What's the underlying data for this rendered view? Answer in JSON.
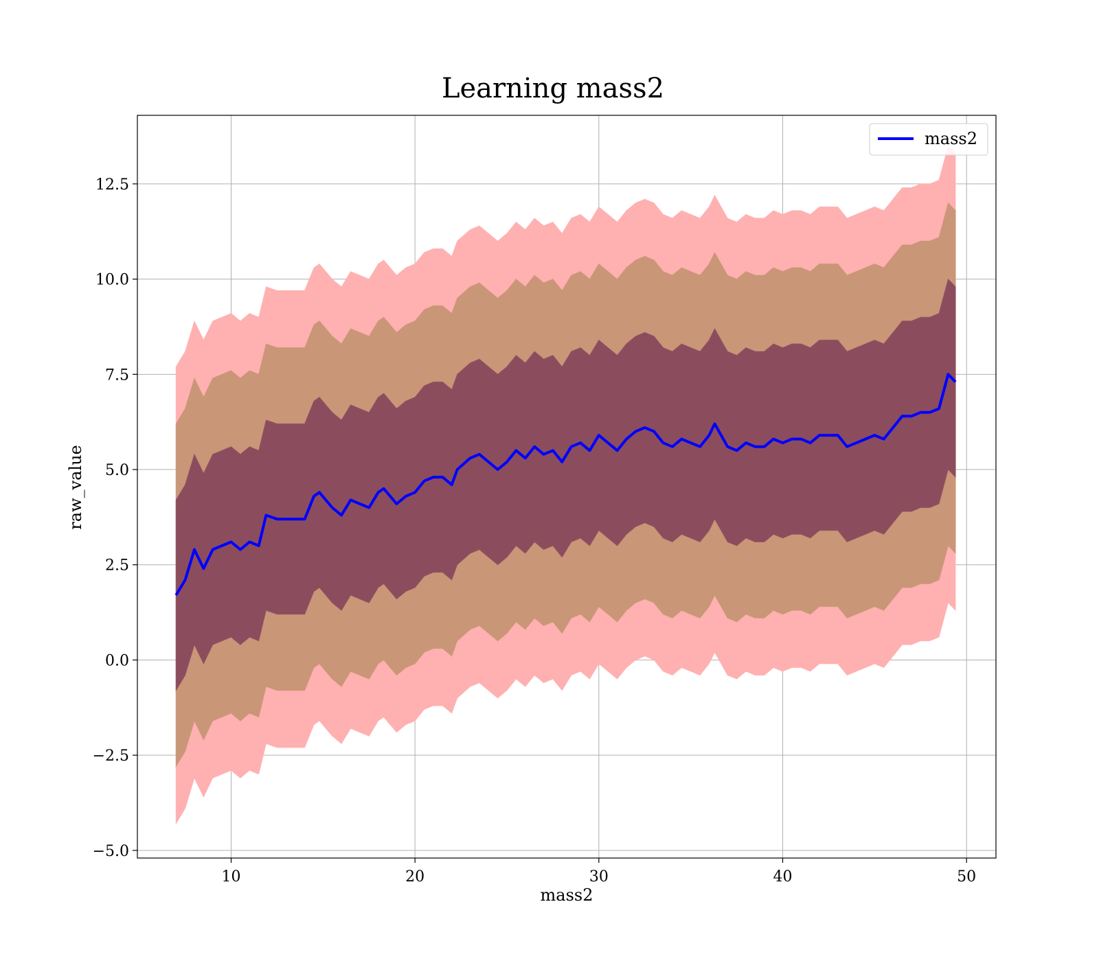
{
  "chart_data": {
    "type": "area",
    "title": "Learning mass2",
    "xlabel": "mass2",
    "ylabel": "raw_value",
    "xlim": [
      4.9,
      51.6
    ],
    "ylim": [
      -5.2,
      14.3
    ],
    "xticks": [
      10,
      20,
      30,
      40,
      50
    ],
    "xtick_labels": [
      "10",
      "20",
      "30",
      "40",
      "50"
    ],
    "yticks": [
      -5.0,
      -2.5,
      0.0,
      2.5,
      5.0,
      7.5,
      10.0,
      12.5
    ],
    "ytick_labels": [
      "−5.0",
      "−2.5",
      "0.0",
      "2.5",
      "5.0",
      "7.5",
      "10.0",
      "12.5"
    ],
    "grid": true,
    "legend_position": "top-right",
    "x": [
      7.0,
      7.5,
      8.0,
      8.5,
      9.0,
      9.5,
      10.0,
      10.5,
      11.0,
      11.5,
      11.9,
      12.5,
      13.0,
      13.5,
      14.0,
      14.5,
      14.8,
      15.5,
      16.0,
      16.5,
      17.0,
      17.5,
      18.0,
      18.3,
      19.0,
      19.5,
      20.0,
      20.5,
      21.0,
      21.5,
      22.0,
      22.3,
      23.0,
      23.5,
      24.0,
      24.5,
      25.0,
      25.5,
      26.0,
      26.5,
      27.0,
      27.5,
      28.0,
      28.5,
      29.0,
      29.5,
      30.0,
      30.5,
      31.0,
      31.5,
      32.0,
      32.5,
      33.0,
      33.5,
      34.0,
      34.5,
      35.0,
      35.5,
      36.0,
      36.3,
      37.0,
      37.5,
      38.0,
      38.5,
      39.0,
      39.5,
      40.0,
      40.5,
      41.0,
      41.5,
      42.0,
      42.5,
      43.0,
      43.5,
      44.0,
      44.5,
      45.0,
      45.5,
      46.0,
      46.5,
      47.0,
      47.5,
      48.0,
      48.5,
      49.0,
      49.4
    ],
    "series": [
      {
        "name": "mass2",
        "color": "#0000ff",
        "band_colors": [
          "#8b4d5e",
          "#c99678",
          "#ffb0b0"
        ],
        "band_sigmas": [
          2.5,
          4.5,
          6.0
        ],
        "values": [
          1.7,
          2.1,
          2.9,
          2.4,
          2.9,
          3.0,
          3.1,
          2.9,
          3.1,
          3.0,
          3.8,
          3.7,
          3.7,
          3.7,
          3.7,
          4.3,
          4.4,
          4.0,
          3.8,
          4.2,
          4.1,
          4.0,
          4.4,
          4.5,
          4.1,
          4.3,
          4.4,
          4.7,
          4.8,
          4.8,
          4.6,
          5.0,
          5.3,
          5.4,
          5.2,
          5.0,
          5.2,
          5.5,
          5.3,
          5.6,
          5.4,
          5.5,
          5.2,
          5.6,
          5.7,
          5.5,
          5.9,
          5.7,
          5.5,
          5.8,
          6.0,
          6.1,
          6.0,
          5.7,
          5.6,
          5.8,
          5.7,
          5.6,
          5.9,
          6.2,
          5.6,
          5.5,
          5.7,
          5.6,
          5.6,
          5.8,
          5.7,
          5.8,
          5.8,
          5.7,
          5.9,
          5.9,
          5.9,
          5.6,
          5.7,
          5.8,
          5.9,
          5.8,
          6.1,
          6.4,
          6.4,
          6.5,
          6.5,
          6.6,
          7.5,
          7.3
        ]
      }
    ]
  }
}
